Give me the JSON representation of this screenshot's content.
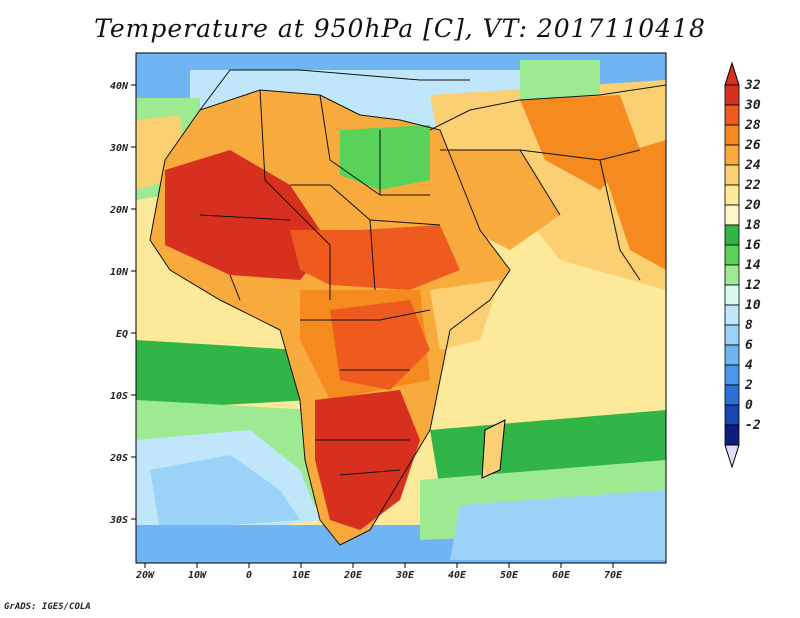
{
  "title": "Temperature at 950hPa [C], VT: 2017110418",
  "credit": "GrADS: IGES/COLA",
  "lon_ticks": [
    "20W",
    "10W",
    "0",
    "10E",
    "20E",
    "30E",
    "40E",
    "50E",
    "60E",
    "70E"
  ],
  "lat_ticks": [
    "40N",
    "30N",
    "20N",
    "10N",
    "EQ",
    "10S",
    "20S",
    "30S"
  ],
  "colorbar": {
    "labels": [
      "32",
      "30",
      "28",
      "26",
      "24",
      "22",
      "20",
      "18",
      "16",
      "14",
      "12",
      "10",
      "8",
      "6",
      "4",
      "2",
      "0",
      "-2"
    ],
    "colors": [
      "#d7301f",
      "#ef5a1e",
      "#f58a1f",
      "#f8ab3c",
      "#fbd072",
      "#fde99a",
      "#fef6c8",
      "#31b546",
      "#58d258",
      "#9eea93",
      "#d9f8f0",
      "#bfe6fb",
      "#9bd2f8",
      "#6fb4f3",
      "#4a96e8",
      "#2b70d6",
      "#1746b0",
      "#0c1f80"
    ],
    "under_color": "#e2dcff",
    "over_color": "#d7301f"
  },
  "map": {
    "projection": "lat-lon",
    "lon_range": [
      -22,
      80
    ],
    "lat_range": [
      -36,
      45
    ],
    "variable": "Temperature at 950hPa",
    "units": "C",
    "valid_time": "2017110418",
    "land_colors": {
      "hottest": "#d7301f",
      "hot": "#ef5a1e",
      "warm": "#f58a1f",
      "mild": "#fbd072",
      "ocean_tropical": "#fde99a",
      "ocean_cool": "#58d258",
      "mediterranean": "#9bd2f8",
      "southern_ocean": "#6fb4f3"
    }
  }
}
